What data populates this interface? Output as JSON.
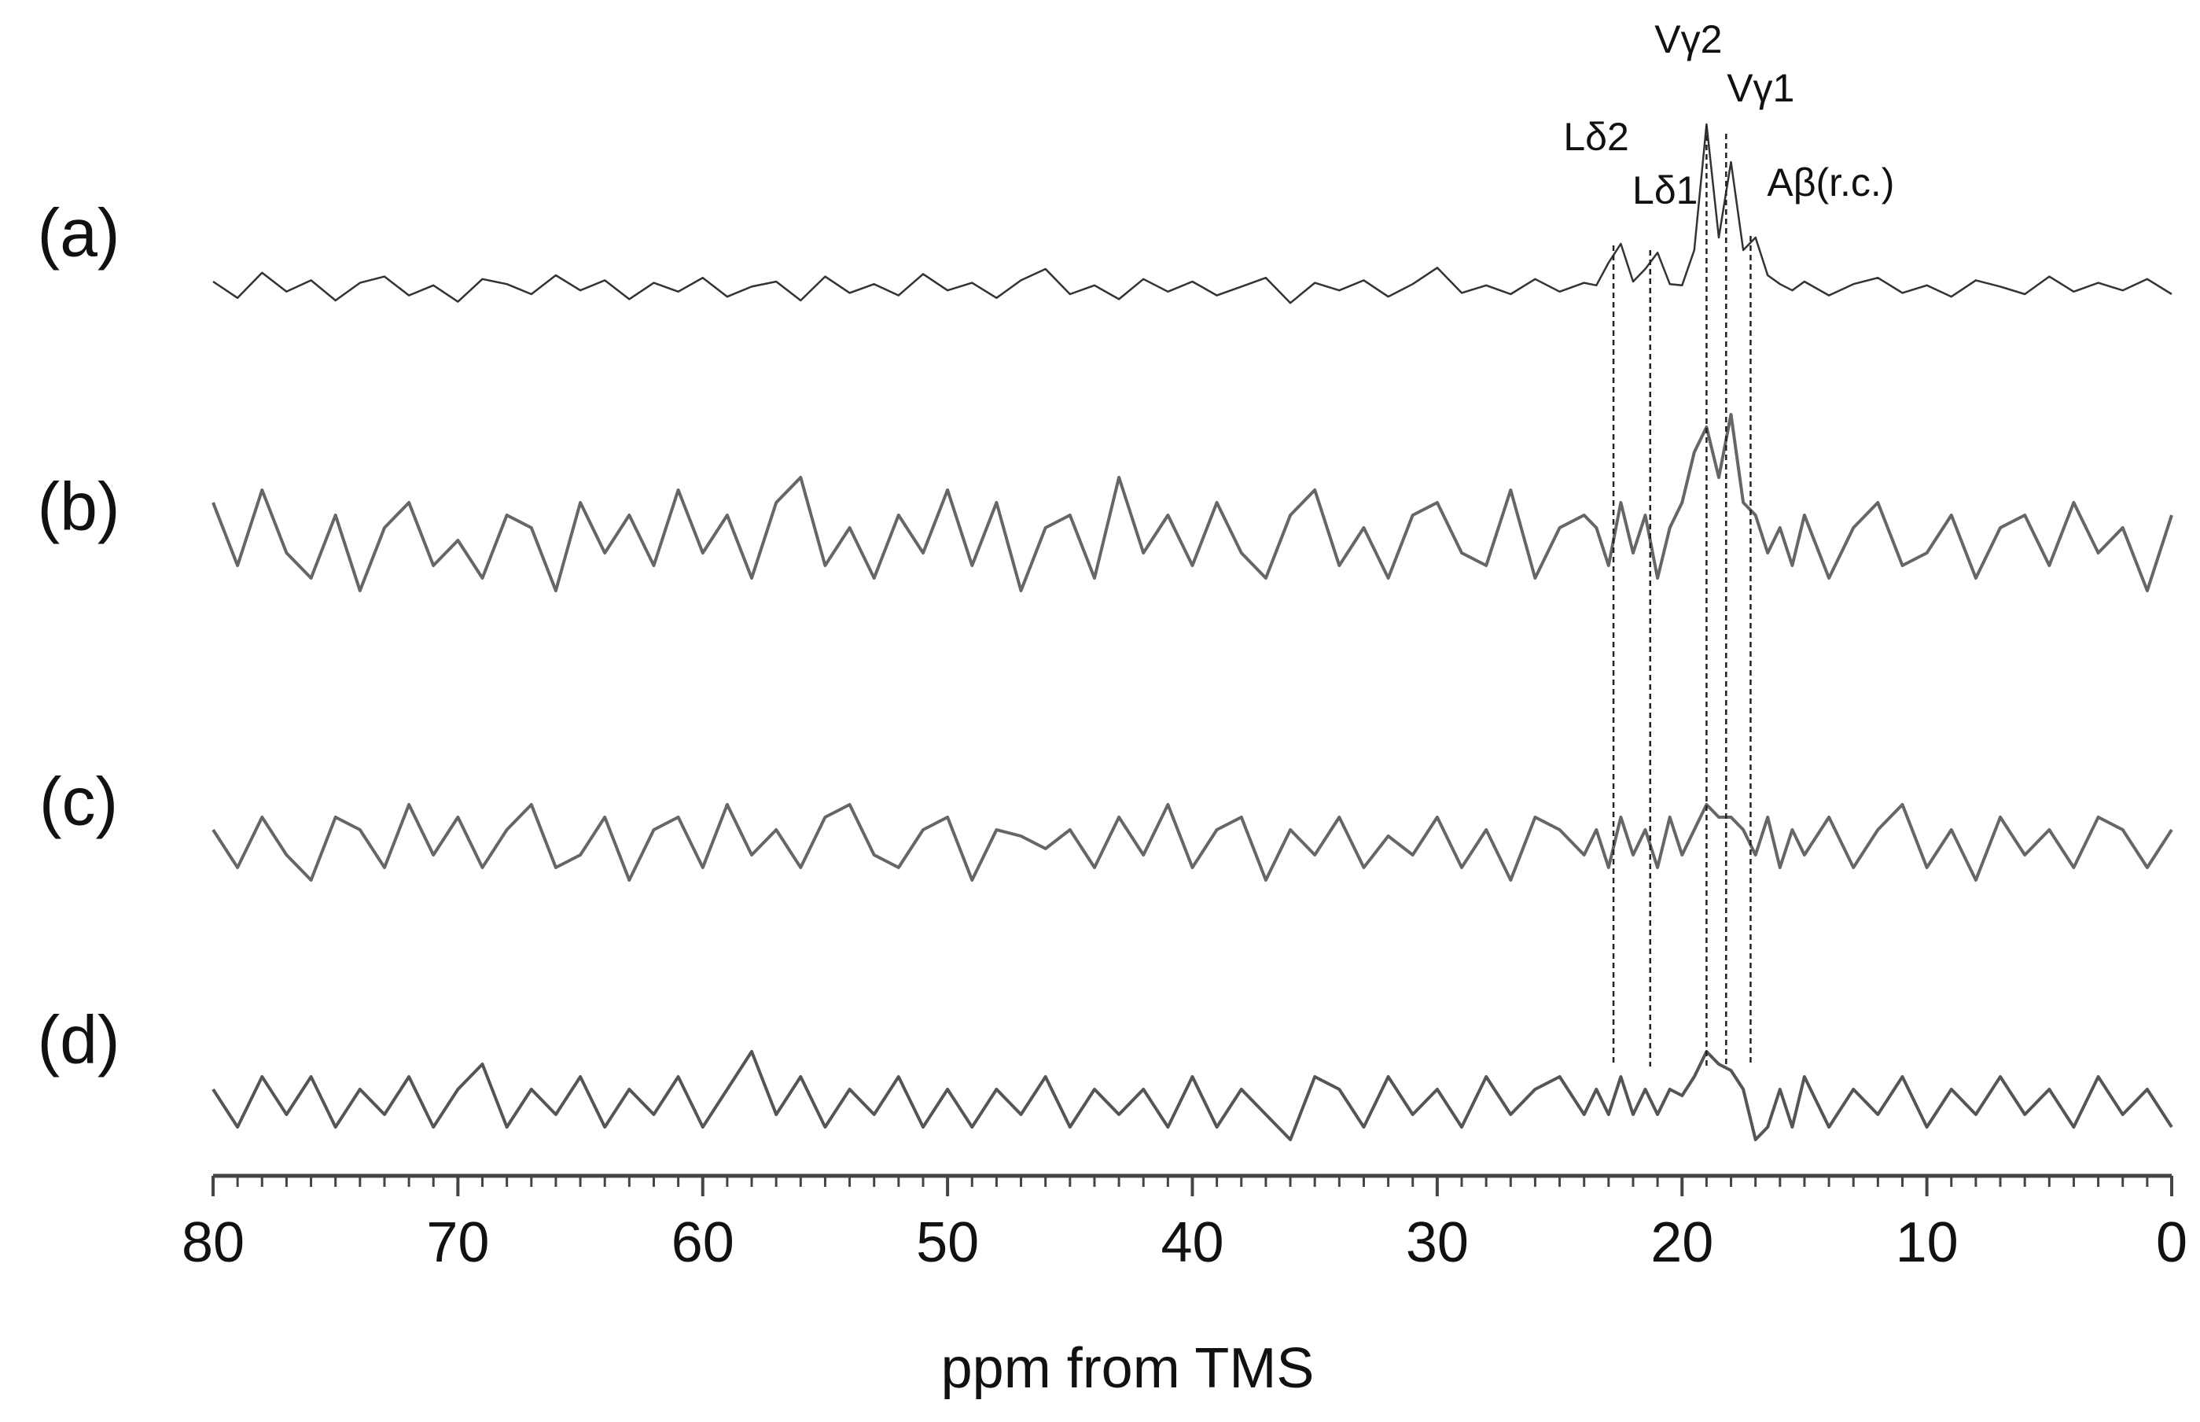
{
  "chart_data": {
    "type": "line",
    "xlabel": "ppm from TMS",
    "xlim": [
      80,
      0
    ],
    "xticks": [
      80,
      70,
      60,
      50,
      40,
      30,
      20,
      10,
      0
    ],
    "xminorticks": [
      80,
      79,
      78,
      77,
      76,
      75,
      74,
      73,
      72,
      71,
      70,
      69,
      68,
      67,
      66,
      65,
      64,
      63,
      62,
      61,
      60,
      59,
      58,
      57,
      56,
      55,
      54,
      53,
      52,
      51,
      50,
      49,
      48,
      47,
      46,
      45,
      44,
      43,
      42,
      41,
      40,
      39,
      38,
      37,
      36,
      35,
      34,
      33,
      32,
      31,
      30,
      29,
      28,
      27,
      26,
      25,
      24,
      23,
      22,
      21,
      20,
      19,
      18,
      17,
      16,
      15,
      14,
      13,
      12,
      11,
      10,
      9,
      8,
      7,
      6,
      5,
      4,
      3,
      2,
      1,
      0
    ],
    "x": [
      80,
      79,
      78,
      77,
      76,
      75,
      74,
      73,
      72,
      71,
      70,
      69,
      68,
      67,
      66,
      65,
      64,
      63,
      62,
      61,
      60,
      59,
      58,
      57,
      56,
      55,
      54,
      53,
      52,
      51,
      50,
      49,
      48,
      47,
      46,
      45,
      44,
      43,
      42,
      41,
      40,
      39,
      38,
      37,
      36,
      35,
      34,
      33,
      32,
      31,
      30,
      29,
      28,
      27,
      26,
      25,
      24,
      23.5,
      23,
      22.5,
      22,
      21.5,
      21,
      20.5,
      20,
      19.5,
      19,
      18.5,
      18,
      17.5,
      17,
      16.5,
      16,
      15.5,
      15,
      14,
      13,
      12,
      11,
      10,
      9,
      8,
      7,
      6,
      5,
      4,
      3,
      2,
      1,
      0
    ],
    "series": [
      {
        "name": "(a)",
        "color": "#333333",
        "values": [
          0.5,
          -0.8,
          1.2,
          -0.3,
          0.6,
          -1,
          0.4,
          0.9,
          -0.6,
          0.2,
          -1.1,
          0.7,
          0.3,
          -0.5,
          1,
          -0.2,
          0.6,
          -0.9,
          0.4,
          -0.3,
          0.8,
          -0.7,
          0.1,
          0.5,
          -1,
          0.9,
          -0.4,
          0.3,
          -0.6,
          1.1,
          -0.2,
          0.4,
          -0.8,
          0.6,
          1.5,
          -0.5,
          0.2,
          -0.9,
          0.7,
          -0.3,
          0.5,
          -0.6,
          0.1,
          0.8,
          -1.2,
          0.4,
          -0.2,
          0.6,
          -0.7,
          0.3,
          1.6,
          -0.4,
          0.2,
          -0.5,
          0.7,
          -0.3,
          0.4,
          0.2,
          2,
          3.5,
          0.5,
          1.5,
          2.8,
          0.3,
          0.2,
          3,
          13,
          4,
          10,
          3,
          4,
          1,
          0.3,
          -0.2,
          0.5,
          -0.6,
          0.3,
          0.8,
          -0.4,
          0.2,
          -0.7,
          0.6,
          0.1,
          -0.5,
          0.9,
          -0.3,
          0.4,
          -0.2,
          0.7,
          -0.5
        ]
      },
      {
        "name": "(b)",
        "color": "#666666",
        "values": [
          3,
          -2,
          4,
          -1,
          -3,
          2,
          -4,
          1,
          3,
          -2,
          0,
          -3,
          2,
          1,
          -4,
          3,
          -1,
          2,
          -2,
          4,
          -1,
          2,
          -3,
          3,
          5,
          -2,
          1,
          -3,
          2,
          -1,
          4,
          -2,
          3,
          -4,
          1,
          2,
          -3,
          5,
          -1,
          2,
          -2,
          3,
          -1,
          -3,
          2,
          4,
          -2,
          1,
          -3,
          2,
          3,
          -1,
          -2,
          4,
          -3,
          1,
          2,
          1,
          -2,
          3,
          -1,
          2,
          -3,
          1,
          3,
          7,
          9,
          5,
          10,
          3,
          2,
          -1,
          1,
          -2,
          2,
          -3,
          1,
          3,
          -2,
          -1,
          2,
          -3,
          1,
          2,
          -2,
          3,
          -1,
          1,
          -4,
          2
        ]
      },
      {
        "name": "(c)",
        "color": "#666666",
        "values": [
          1,
          -2,
          2,
          -1,
          -3,
          2,
          1,
          -2,
          3,
          -1,
          2,
          -2,
          1,
          3,
          -2,
          -1,
          2,
          -3,
          1,
          2,
          -2,
          3,
          -1,
          1,
          -2,
          2,
          3,
          -1,
          -2,
          1,
          2,
          -3,
          1,
          0.5,
          -0.5,
          1,
          -2,
          2,
          -1,
          3,
          -2,
          1,
          2,
          -3,
          1,
          -1,
          2,
          -2,
          0.5,
          -1,
          2,
          -2,
          1,
          -3,
          2,
          1,
          -1,
          1,
          -2,
          2,
          -1,
          1,
          -2,
          2,
          -1,
          1,
          3,
          2,
          2,
          1,
          -1,
          2,
          -2,
          1,
          -1,
          2,
          -2,
          1,
          3,
          -2,
          1,
          -3,
          2,
          -1,
          1,
          -2,
          2,
          1,
          -2,
          1
        ]
      },
      {
        "name": "(d)",
        "color": "#555555",
        "values": [
          1,
          -2,
          2,
          -1,
          2,
          -2,
          1,
          -1,
          2,
          -2,
          1,
          3,
          -2,
          1,
          -1,
          2,
          -2,
          1,
          -1,
          2,
          -2,
          1,
          4,
          -1,
          2,
          -2,
          1,
          -1,
          2,
          -2,
          1,
          -2,
          1,
          -1,
          2,
          -2,
          1,
          -1,
          1,
          -2,
          2,
          -2,
          1,
          -1,
          -3,
          2,
          1,
          -2,
          2,
          -1,
          1,
          -2,
          2,
          -1,
          1,
          2,
          -1,
          1,
          -1,
          2,
          -1,
          1,
          -1,
          1,
          0.5,
          2,
          4,
          3,
          2.5,
          1,
          -3,
          -2,
          1,
          -2,
          2,
          -2,
          1,
          -1,
          2,
          -2,
          1,
          -1,
          2,
          -1,
          1,
          -2,
          2,
          -1,
          1,
          -2
        ]
      }
    ],
    "annotations": [
      {
        "text": "Lδ2",
        "x": 22.8
      },
      {
        "text": "Lδ1",
        "x": 21.3
      },
      {
        "text": "Vγ2",
        "x": 19.0
      },
      {
        "text": "Vγ1",
        "x": 18.2
      },
      {
        "text": "Aβ(r.c.)",
        "x": 17.2
      }
    ]
  }
}
